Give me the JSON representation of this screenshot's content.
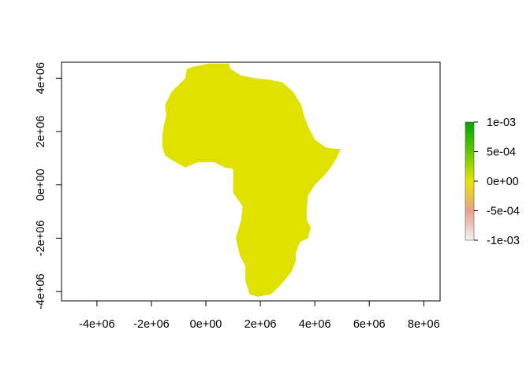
{
  "chart_data": {
    "type": "heatmap",
    "title": "",
    "xlabel": "",
    "ylabel": "",
    "xlim": [
      -5300000.0,
      8600000.0
    ],
    "ylim": [
      -4350000.0,
      4600000.0
    ],
    "x_ticks": [
      {
        "value": -4000000.0,
        "label": "-4e+06"
      },
      {
        "value": -2000000.0,
        "label": "-2e+06"
      },
      {
        "value": 0,
        "label": "0e+00"
      },
      {
        "value": 2000000.0,
        "label": "2e+06"
      },
      {
        "value": 4000000.0,
        "label": "4e+06"
      },
      {
        "value": 6000000.0,
        "label": "6e+06"
      },
      {
        "value": 8000000.0,
        "label": "8e+06"
      }
    ],
    "y_ticks": [
      {
        "value": -4000000.0,
        "label": "-4e+06"
      },
      {
        "value": -2000000.0,
        "label": "-2e+06"
      },
      {
        "value": 0,
        "label": "0e+00"
      },
      {
        "value": 2000000.0,
        "label": "2e+06"
      },
      {
        "value": 4000000.0,
        "label": "4e+06"
      }
    ],
    "raster": {
      "value": 0,
      "fill_color": "#e1e100",
      "outline": [
        [
          100000.0,
          4550000.0
        ],
        [
          850000.0,
          4550000.0
        ],
        [
          900000.0,
          4350000.0
        ],
        [
          1300000.0,
          4100000.0
        ],
        [
          1800000.0,
          4000000.0
        ],
        [
          2300000.0,
          3950000.0
        ],
        [
          2800000.0,
          3850000.0
        ],
        [
          3200000.0,
          3500000.0
        ],
        [
          3500000.0,
          3000000.0
        ],
        [
          3600000.0,
          2600000.0
        ],
        [
          3750000.0,
          2200000.0
        ],
        [
          4000000.0,
          1700000.0
        ],
        [
          4400000.0,
          1400000.0
        ],
        [
          4800000.0,
          1350000.0
        ],
        [
          4950000.0,
          1350000.0
        ],
        [
          4800000.0,
          1000000.0
        ],
        [
          4550000.0,
          600000.0
        ],
        [
          4300000.0,
          300000.0
        ],
        [
          4000000.0,
          0.0
        ],
        [
          3750000.0,
          -400000.0
        ],
        [
          3700000.0,
          -900000.0
        ],
        [
          3700000.0,
          -1300000.0
        ],
        [
          3850000.0,
          -1600000.0
        ],
        [
          3750000.0,
          -2000000.0
        ],
        [
          3450000.0,
          -2150000.0
        ],
        [
          3300000.0,
          -2550000.0
        ],
        [
          3300000.0,
          -2850000.0
        ],
        [
          3150000.0,
          -3250000.0
        ],
        [
          2750000.0,
          -3750000.0
        ],
        [
          2400000.0,
          -4100000.0
        ],
        [
          1900000.0,
          -4200000.0
        ],
        [
          1600000.0,
          -4100000.0
        ],
        [
          1450000.0,
          -3600000.0
        ],
        [
          1450000.0,
          -3050000.0
        ],
        [
          1250000.0,
          -2650000.0
        ],
        [
          1100000.0,
          -2000000.0
        ],
        [
          1300000.0,
          -1300000.0
        ],
        [
          1350000.0,
          -800000.0
        ],
        [
          1000000.0,
          -300000.0
        ],
        [
          1000000.0,
          600000.0
        ],
        [
          700000.0,
          650000.0
        ],
        [
          300000.0,
          850000.0
        ],
        [
          -300000.0,
          850000.0
        ],
        [
          -750000.0,
          650000.0
        ],
        [
          -1200000.0,
          900000.0
        ],
        [
          -1500000.0,
          1100000.0
        ],
        [
          -1600000.0,
          1450000.0
        ],
        [
          -1600000.0,
          1800000.0
        ],
        [
          -1550000.0,
          2200000.0
        ],
        [
          -1450000.0,
          2600000.0
        ],
        [
          -1500000.0,
          3000000.0
        ],
        [
          -1250000.0,
          3500000.0
        ],
        [
          -1000000.0,
          3750000.0
        ],
        [
          -750000.0,
          4000000.0
        ],
        [
          -700000.0,
          4350000.0
        ],
        [
          -400000.0,
          4450000.0
        ]
      ]
    },
    "legend": {
      "position": "right",
      "range": [
        -0.001,
        0.001
      ],
      "labels": [
        "1e-03",
        "5e-04",
        "0e+00",
        "-5e-04",
        "-1e-03"
      ],
      "colors": [
        "#00a600",
        "#63c600",
        "#e6e600",
        "#e9bd3a",
        "#eb9e8c",
        "#f2f2f2"
      ]
    }
  }
}
